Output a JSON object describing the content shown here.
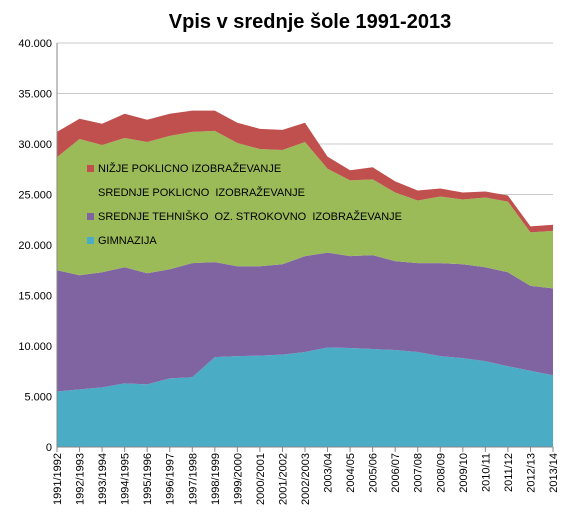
{
  "chart_data": {
    "type": "area",
    "stacked": true,
    "title": "Vpis v srednje šole 1991-2013",
    "xlabel": "",
    "ylabel": "",
    "ylim": [
      0,
      40000
    ],
    "yticks": [
      "0",
      "5.000",
      "10.000",
      "15.000",
      "20.000",
      "25.000",
      "30.000",
      "35.000",
      "40.000"
    ],
    "grid": true,
    "legend_position": "inside-left",
    "categories": [
      "1991/1992",
      "1992/1993",
      "1993/1994",
      "1994/1995",
      "1995/1996",
      "1996/1997",
      "1997/1998",
      "1998/1999",
      "1999/2000",
      "2000/2001",
      "2001/2002",
      "2002/2003",
      "2003/04",
      "2004/05",
      "2005/06",
      "2006/07",
      "2007/08",
      "2008/09",
      "2009/10",
      "2010/11",
      "2011/12",
      "2012/13",
      "2013/14"
    ],
    "series": [
      {
        "name": "GIMNAZIJA",
        "color": "#4BACC6",
        "values": [
          5500,
          5700,
          5900,
          6300,
          6200,
          6800,
          6900,
          8900,
          9000,
          9050,
          9150,
          9400,
          9850,
          9800,
          9700,
          9600,
          9400,
          9000,
          8800,
          8500,
          8000,
          7550,
          7100
        ]
      },
      {
        "name": "SREDNJE TEHNIŠKO  OZ. STROKOVNO  IZOBRAŽEVANJE",
        "color": "#8064A2",
        "values": [
          12000,
          11300,
          11400,
          11500,
          11000,
          10800,
          11300,
          9400,
          8900,
          8850,
          8950,
          9500,
          9400,
          9100,
          9300,
          8800,
          8800,
          9200,
          9300,
          9300,
          9300,
          8400,
          8600
        ]
      },
      {
        "name": "SREDNJE POKLICNO  IZOBRAŽEVANJE",
        "color": "#9BBB59",
        "values": [
          11200,
          13500,
          12600,
          12800,
          13000,
          13200,
          13000,
          13000,
          12200,
          11600,
          11300,
          11300,
          8300,
          7500,
          7500,
          6800,
          6200,
          6600,
          6400,
          6900,
          7000,
          5300,
          5700
        ]
      },
      {
        "name": "NIŽJE POKLICNO IZOBRAŽEVANJE",
        "color": "#C0504D",
        "values": [
          2500,
          2000,
          2100,
          2400,
          2200,
          2200,
          2100,
          2000,
          2000,
          2000,
          2000,
          1900,
          1200,
          1000,
          1200,
          1100,
          1000,
          800,
          700,
          600,
          600,
          600,
          600
        ]
      }
    ]
  }
}
